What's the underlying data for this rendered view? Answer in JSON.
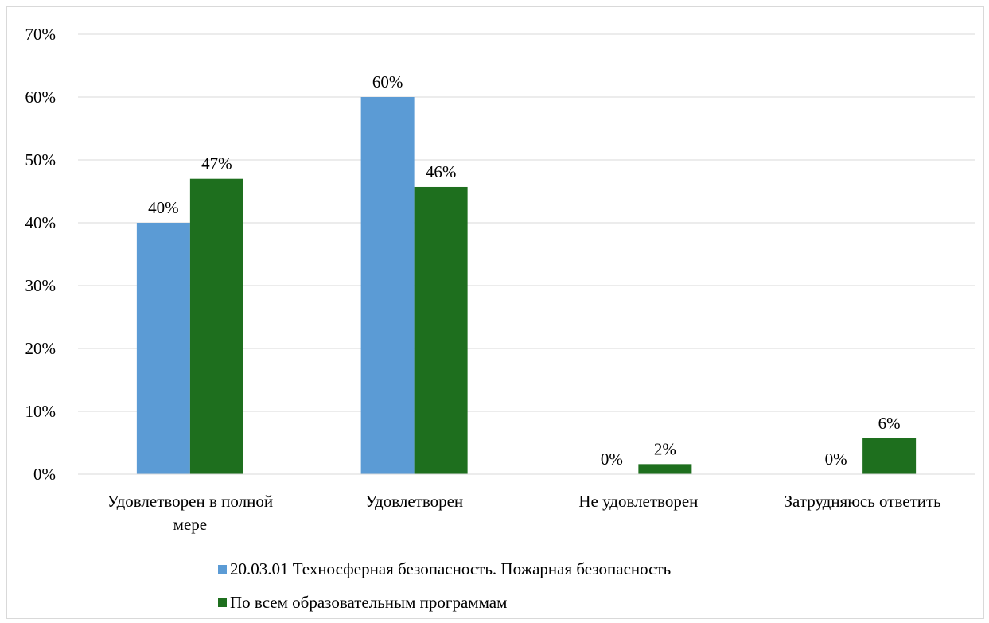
{
  "chart_data": {
    "type": "bar",
    "categories": [
      [
        "Удовлетворен в полной",
        "мере"
      ],
      [
        "Удовлетворен"
      ],
      [
        "Не удовлетворен"
      ],
      [
        "Затрудняюсь ответить"
      ]
    ],
    "series": [
      {
        "name": "20.03.01 Техносферная безопасность. Пожарная безопасность",
        "values": [
          40,
          60,
          0,
          0
        ],
        "labels": [
          "40%",
          "60%",
          "0%",
          "0%"
        ],
        "color": "#5b9bd5"
      },
      {
        "name": "По всем образовательным программам",
        "values": [
          47,
          45.7,
          1.6,
          5.7
        ],
        "labels": [
          "47%",
          "46%",
          "2%",
          "6%"
        ],
        "color": "#1e6f1e"
      }
    ],
    "ylim": [
      0,
      70
    ],
    "yticks": [
      "0%",
      "10%",
      "20%",
      "30%",
      "40%",
      "50%",
      "60%",
      "70%"
    ],
    "grid": true,
    "legend_position": "bottom",
    "gridline_color": "#d9d9d9"
  }
}
